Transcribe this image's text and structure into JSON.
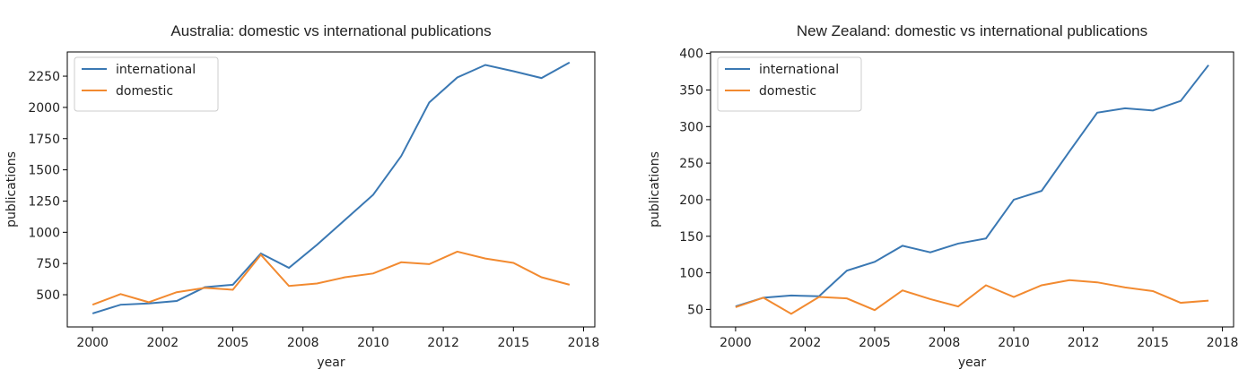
{
  "chart_data": [
    {
      "type": "line",
      "title": "Australia: domestic vs international publications",
      "xlabel": "year",
      "ylabel": "publications",
      "x": [
        2000,
        2001,
        2002,
        2003,
        2004,
        2005,
        2006,
        2007,
        2008,
        2009,
        2010,
        2011,
        2012,
        2013,
        2014,
        2015,
        2016,
        2017
      ],
      "series": [
        {
          "name": "international",
          "color": "#3a78b3",
          "values": [
            350,
            420,
            430,
            450,
            560,
            580,
            830,
            715,
            900,
            1100,
            1300,
            1610,
            2040,
            2240,
            2340,
            2290,
            2235,
            2360
          ]
        },
        {
          "name": "domestic",
          "color": "#f28a30",
          "values": [
            420,
            505,
            440,
            520,
            555,
            540,
            820,
            570,
            590,
            640,
            670,
            760,
            745,
            845,
            790,
            755,
            640,
            580
          ]
        }
      ],
      "xlim": [
        1999.1,
        2017.9
      ],
      "ylim": [
        242,
        2444
      ],
      "xticks": [
        2000,
        {
          "value": 2002.5,
          "label": "2002"
        },
        2005,
        {
          "value": 2007.5,
          "label": "2008"
        },
        2010,
        {
          "value": 2012.5,
          "label": "2012"
        },
        2015,
        {
          "value": 2017.5,
          "label": "2018"
        }
      ],
      "yticks": [
        500,
        750,
        1000,
        1250,
        1500,
        1750,
        2000,
        2250
      ],
      "legend": "upper left"
    },
    {
      "type": "line",
      "title": "New Zealand: domestic vs international publications",
      "xlabel": "year",
      "ylabel": "publications",
      "x": [
        2000,
        2001,
        2002,
        2003,
        2004,
        2005,
        2006,
        2007,
        2008,
        2009,
        2010,
        2011,
        2012,
        2013,
        2014,
        2015,
        2016,
        2017
      ],
      "series": [
        {
          "name": "international",
          "color": "#3a78b3",
          "values": [
            54,
            66,
            69,
            68,
            103,
            115,
            137,
            128,
            140,
            147,
            200,
            212,
            266,
            319,
            325,
            322,
            335,
            384
          ]
        },
        {
          "name": "domestic",
          "color": "#f28a30",
          "values": [
            53,
            66,
            44,
            67,
            65,
            49,
            76,
            64,
            54,
            83,
            67,
            83,
            90,
            87,
            80,
            75,
            59,
            62
          ]
        }
      ],
      "xlim": [
        1999.1,
        2017.9
      ],
      "ylim": [
        26,
        402
      ],
      "xticks": [
        2000,
        {
          "value": 2002.5,
          "label": "2002"
        },
        2005,
        {
          "value": 2007.5,
          "label": "2008"
        },
        2010,
        {
          "value": 2012.5,
          "label": "2012"
        },
        2015,
        {
          "value": 2017.5,
          "label": "2018"
        }
      ],
      "yticks": [
        50,
        100,
        150,
        200,
        250,
        300,
        350,
        400
      ],
      "legend": "upper left"
    }
  ]
}
